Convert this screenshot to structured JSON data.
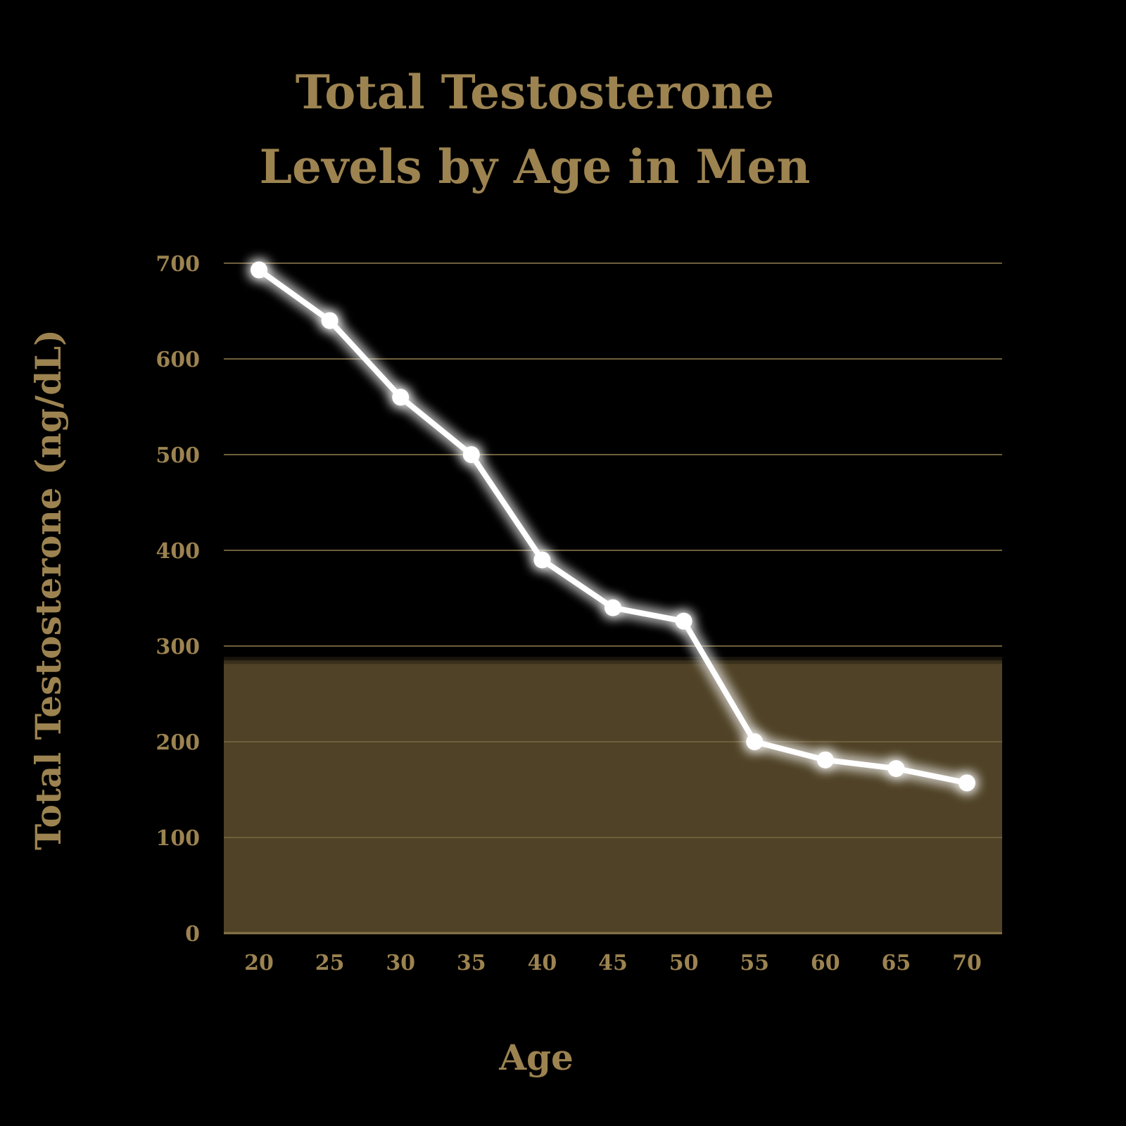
{
  "chart_data": {
    "type": "line",
    "title": [
      "Total Testosterone",
      "Levels by Age in Men"
    ],
    "xlabel": "Age",
    "ylabel": "Total Testosterone (ng/dL)",
    "x": [
      20,
      25,
      30,
      35,
      40,
      45,
      50,
      55,
      60,
      65,
      70
    ],
    "series": [
      {
        "values": [
          693,
          640,
          560,
          500,
          390,
          340,
          326,
          200,
          181,
          172,
          157
        ]
      }
    ],
    "xticks": [
      "20",
      "25",
      "30",
      "35",
      "40",
      "45",
      "50",
      "55",
      "60",
      "65",
      "70"
    ],
    "yticks": [
      "0",
      "100",
      "200",
      "300",
      "400",
      "500",
      "600",
      "700"
    ],
    "ylim": [
      0,
      700
    ],
    "shaded_band": [
      0,
      285
    ],
    "grid": true,
    "colors": {
      "background": "#000000",
      "text": "#9c8350",
      "gridline": "#6e5f3c",
      "band": "#4f4226",
      "line": "#ffffff"
    }
  }
}
